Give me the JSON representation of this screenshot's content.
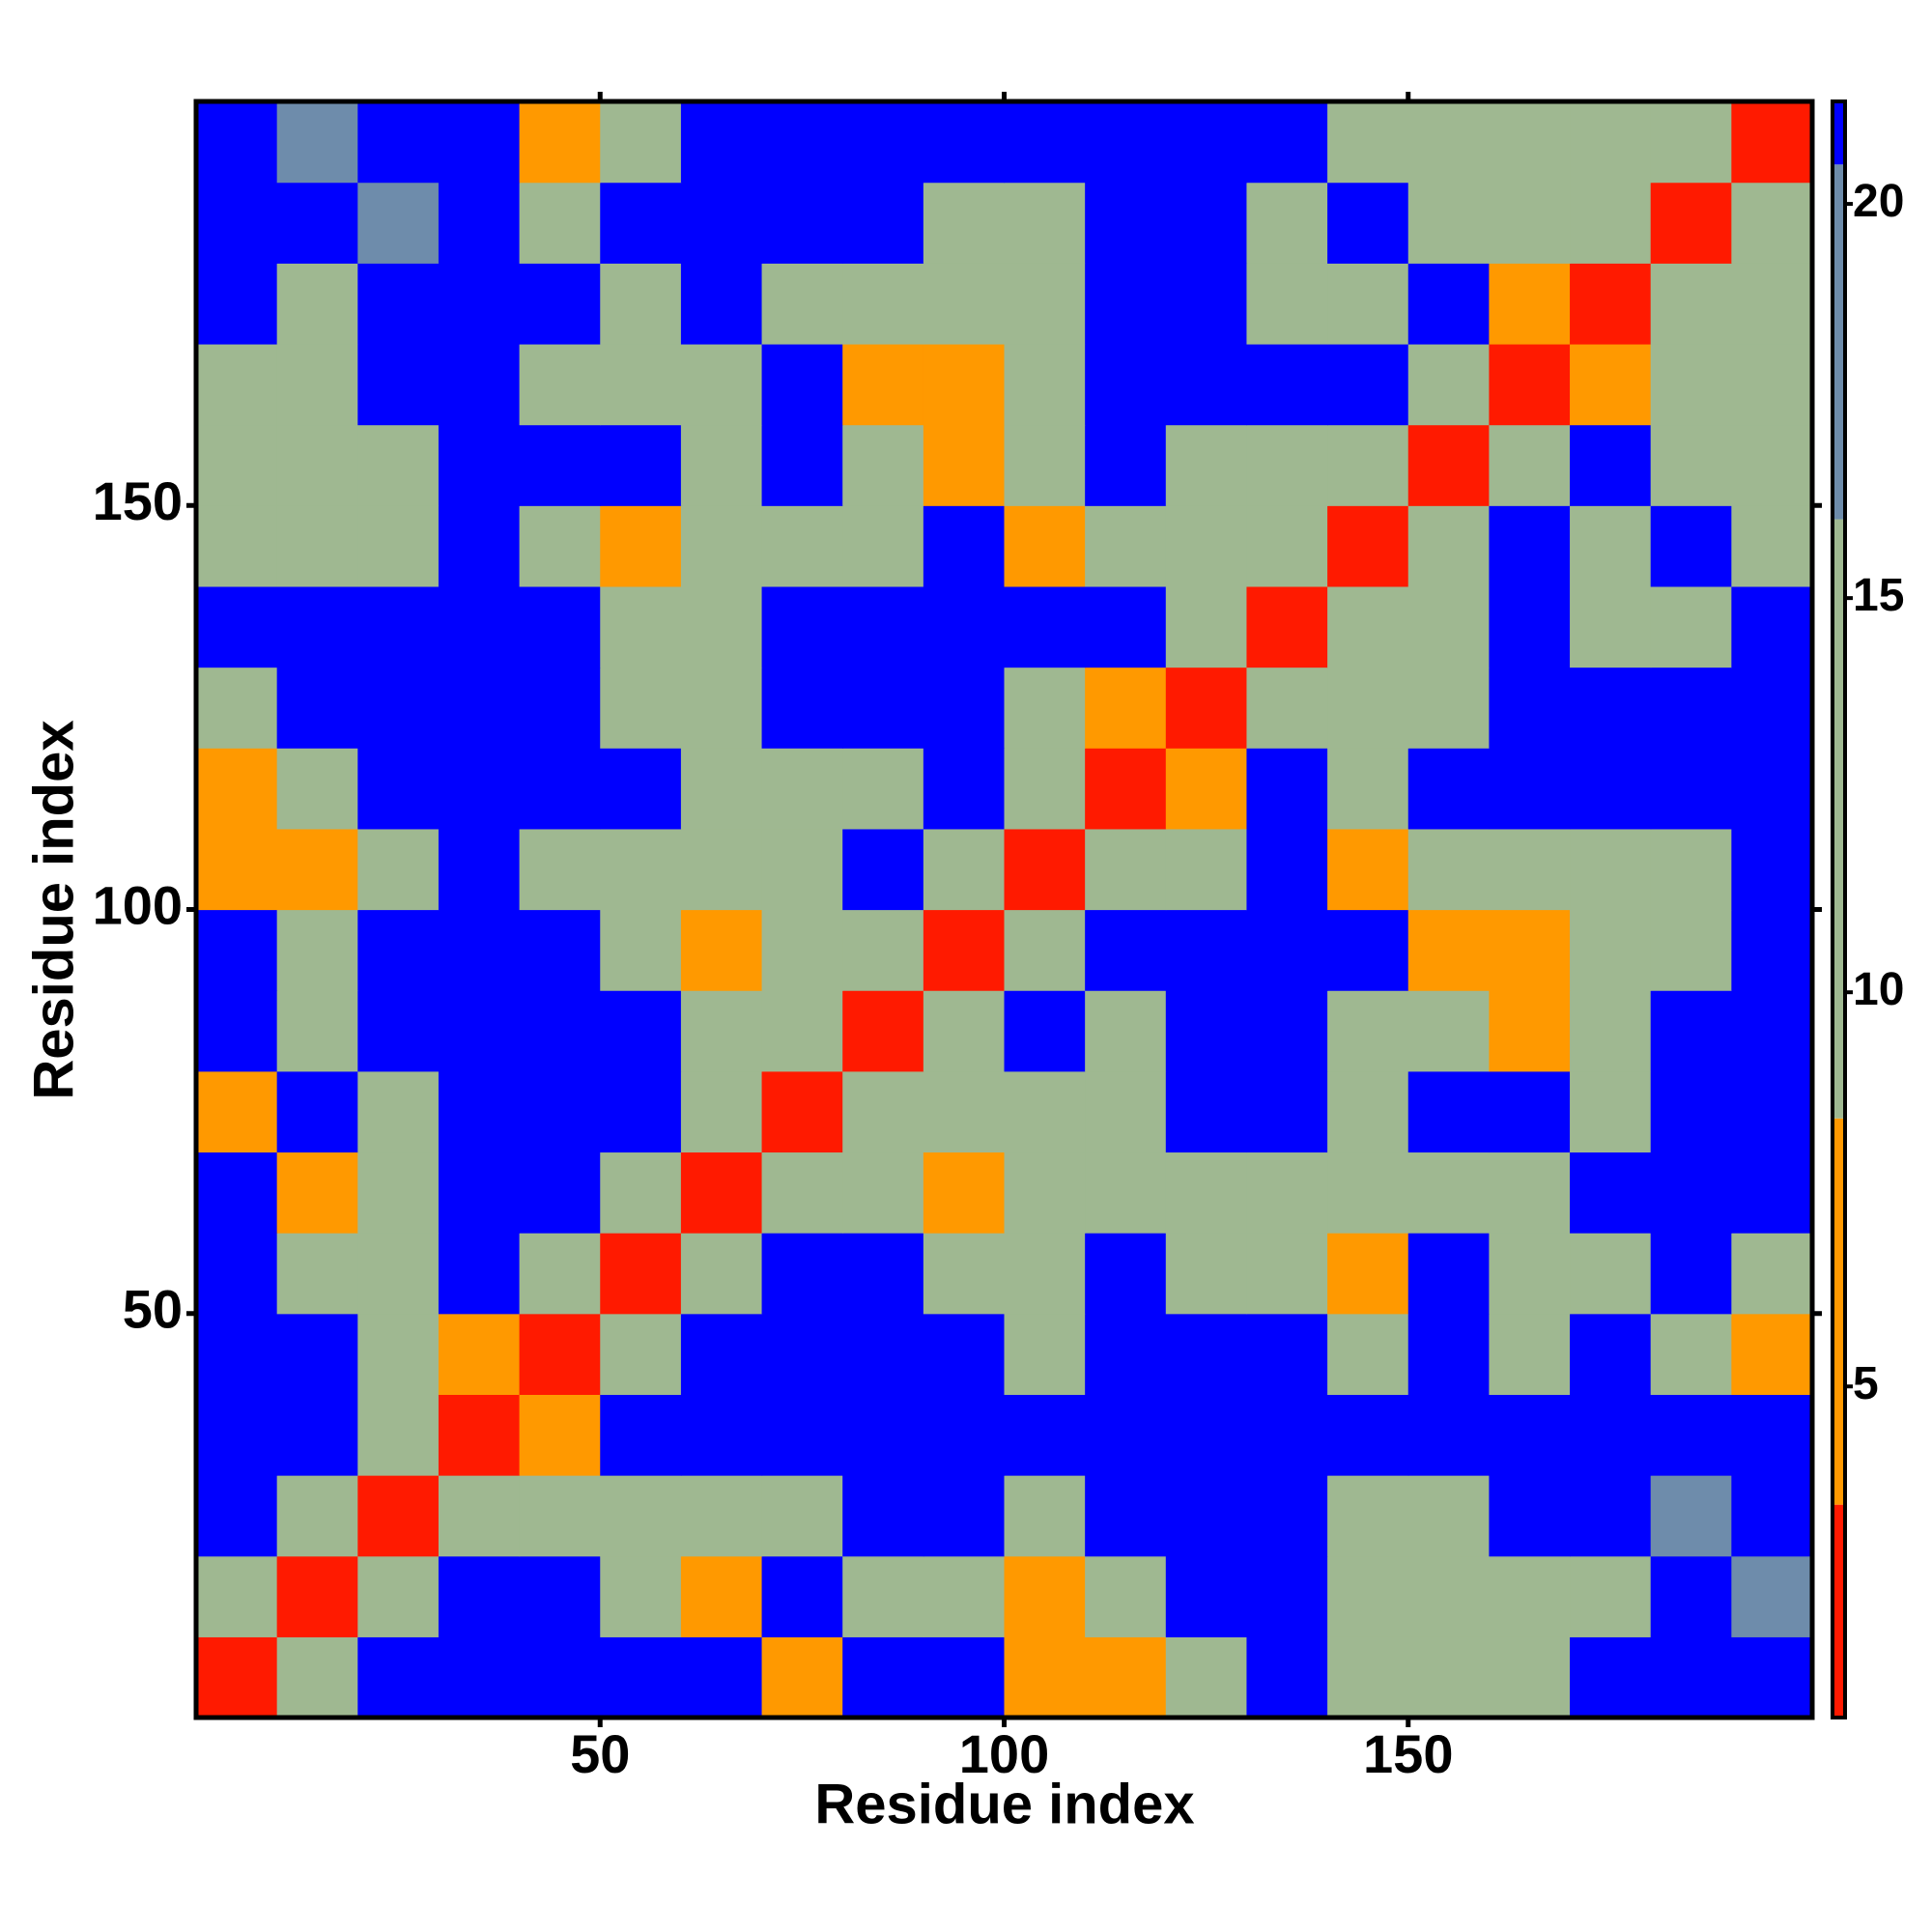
{
  "chart_data": {
    "type": "heatmap",
    "xlabel": "Residue index",
    "ylabel": "Residue index",
    "xbins": [
      0,
      10,
      20,
      30,
      40,
      50,
      60,
      70,
      80,
      90,
      100,
      110,
      120,
      130,
      140,
      150,
      160,
      170,
      180,
      190,
      200
    ],
    "ybins": [
      0,
      10,
      20,
      30,
      40,
      50,
      60,
      70,
      80,
      90,
      100,
      110,
      120,
      130,
      140,
      150,
      160,
      170,
      180,
      190,
      200
    ],
    "xlim": [
      0,
      200
    ],
    "ylim": [
      0,
      200
    ],
    "xticks": [
      50,
      100,
      150
    ],
    "yticks": [
      50,
      100,
      150
    ],
    "clim": [
      0.8,
      21.3
    ],
    "cticks": [
      5,
      10,
      15,
      20
    ],
    "levels": {
      "bounds": [
        0.8,
        3.5,
        8.4,
        16,
        20.5,
        21.3
      ],
      "colors": [
        "#ff1a00",
        "#ff9900",
        "#9fb891",
        "#6e8cab",
        "#0000ff"
      ]
    },
    "z": [
      [
        3,
        11,
        21,
        21,
        21,
        21,
        21,
        6,
        21,
        21,
        6,
        6,
        12,
        21,
        12,
        12,
        14,
        21,
        21,
        21
      ],
      [
        11,
        3,
        11,
        21,
        21,
        12,
        6,
        21,
        12,
        13,
        6,
        10,
        21,
        21,
        12,
        13,
        12,
        12,
        21,
        17
      ],
      [
        21,
        11,
        3,
        9,
        11,
        12,
        12,
        11,
        21,
        21,
        13,
        21,
        21,
        21,
        12,
        12,
        21,
        21,
        17,
        21
      ],
      [
        21,
        21,
        9,
        3,
        6,
        21,
        21,
        21,
        21,
        21,
        21,
        21,
        21,
        21,
        21,
        21,
        21,
        21,
        21,
        21
      ],
      [
        21,
        21,
        11,
        6,
        3,
        11,
        21,
        21,
        21,
        21,
        14,
        21,
        21,
        21,
        12,
        21,
        15,
        21,
        14,
        8
      ],
      [
        21,
        12,
        12,
        21,
        11,
        3,
        11,
        21,
        21,
        13,
        13,
        21,
        12,
        13,
        8,
        21,
        15,
        14,
        21,
        12
      ],
      [
        21,
        6,
        12,
        21,
        21,
        11,
        3,
        11,
        9,
        7,
        11,
        12,
        13,
        13,
        14,
        13,
        13,
        21,
        21,
        21
      ],
      [
        6,
        21,
        11,
        21,
        21,
        21,
        11,
        3,
        11,
        11,
        12,
        11,
        21,
        21,
        14,
        21,
        21,
        11,
        21,
        21
      ],
      [
        21,
        12,
        21,
        21,
        21,
        21,
        9,
        11,
        3,
        11,
        21,
        13,
        21,
        21,
        14,
        12,
        6,
        12,
        21,
        21
      ],
      [
        21,
        13,
        21,
        21,
        21,
        13,
        7,
        11,
        11,
        3,
        11,
        21,
        21,
        21,
        21,
        6,
        8,
        13,
        14,
        21
      ],
      [
        6,
        6,
        13,
        21,
        14,
        13,
        11,
        12,
        21,
        11,
        3,
        11,
        11,
        21,
        6,
        13,
        13,
        12,
        13,
        21
      ],
      [
        6,
        10,
        21,
        21,
        21,
        21,
        12,
        11,
        13,
        21,
        11,
        3,
        6,
        21,
        13,
        21,
        21,
        21,
        21,
        21
      ],
      [
        12,
        21,
        21,
        21,
        21,
        12,
        13,
        21,
        21,
        21,
        11,
        6,
        3,
        9,
        14,
        13,
        21,
        21,
        21,
        21
      ],
      [
        21,
        21,
        21,
        21,
        21,
        13,
        13,
        21,
        21,
        21,
        21,
        21,
        9,
        3,
        11,
        12,
        21,
        12,
        13,
        21
      ],
      [
        12,
        12,
        12,
        21,
        12,
        8,
        14,
        14,
        14,
        21,
        6,
        13,
        14,
        11,
        3,
        10,
        21,
        13,
        21,
        14
      ],
      [
        12,
        13,
        12,
        21,
        21,
        21,
        13,
        21,
        12,
        6,
        13,
        21,
        13,
        12,
        10,
        3,
        11,
        21,
        12,
        13
      ],
      [
        14,
        12,
        21,
        21,
        15,
        15,
        13,
        21,
        6,
        8,
        13,
        21,
        21,
        21,
        21,
        11,
        3,
        6,
        12,
        14
      ],
      [
        21,
        12,
        21,
        21,
        21,
        14,
        21,
        11,
        12,
        13,
        12,
        21,
        21,
        12,
        13,
        21,
        6,
        3,
        11,
        12
      ],
      [
        21,
        21,
        17,
        21,
        14,
        21,
        21,
        21,
        21,
        14,
        13,
        21,
        21,
        13,
        21,
        12,
        12,
        11,
        3,
        11
      ],
      [
        21,
        17,
        21,
        21,
        8,
        12,
        21,
        21,
        21,
        21,
        21,
        21,
        21,
        21,
        14,
        13,
        14,
        12,
        11,
        3
      ]
    ]
  }
}
